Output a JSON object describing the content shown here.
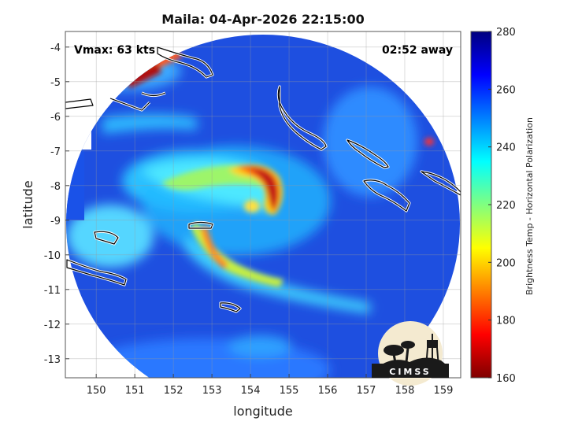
{
  "chart_data": {
    "type": "heatmap",
    "title": "Maila: 04-Apr-2026 22:15:00",
    "annotations": {
      "vmax": "Vmax: 63 kts",
      "time_offset": "02:52 away"
    },
    "xlabel": "longitude",
    "ylabel": "latitude",
    "xlim": [
      149.2,
      159.45
    ],
    "ylim": [
      -13.55,
      -3.55
    ],
    "x_ticks": [
      150,
      151,
      152,
      153,
      154,
      155,
      156,
      157,
      158,
      159
    ],
    "y_ticks": [
      -4,
      -5,
      -6,
      -7,
      -8,
      -9,
      -10,
      -11,
      -12,
      -13
    ],
    "grid": true,
    "colorbar": {
      "label": "Brightness Temp - Horizontal Polarization",
      "range": [
        160,
        280
      ],
      "ticks": [
        280,
        260,
        240,
        220,
        200,
        180,
        160
      ],
      "colormap": "jet"
    },
    "storm_center": {
      "lon": 154.3,
      "lat": -8.6
    },
    "swath_center": {
      "lon": 154.2,
      "lat": -8.5
    },
    "logo_text": "CIMSS"
  }
}
